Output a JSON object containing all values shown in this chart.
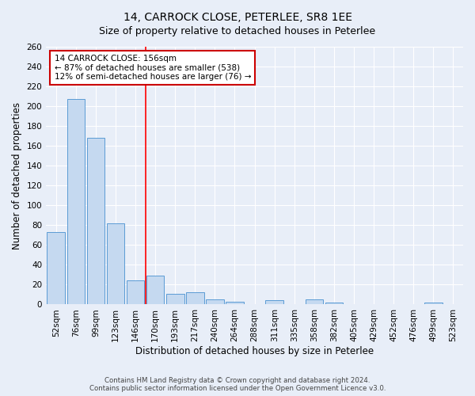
{
  "title": "14, CARROCK CLOSE, PETERLEE, SR8 1EE",
  "subtitle": "Size of property relative to detached houses in Peterlee",
  "xlabel": "Distribution of detached houses by size in Peterlee",
  "ylabel": "Number of detached properties",
  "categories": [
    "52sqm",
    "76sqm",
    "99sqm",
    "123sqm",
    "146sqm",
    "170sqm",
    "193sqm",
    "217sqm",
    "240sqm",
    "264sqm",
    "288sqm",
    "311sqm",
    "335sqm",
    "358sqm",
    "382sqm",
    "405sqm",
    "429sqm",
    "452sqm",
    "476sqm",
    "499sqm",
    "523sqm"
  ],
  "values": [
    73,
    207,
    168,
    82,
    24,
    29,
    11,
    12,
    5,
    3,
    0,
    4,
    0,
    5,
    2,
    0,
    0,
    0,
    0,
    2,
    0
  ],
  "bar_color": "#c5d9f0",
  "bar_edge_color": "#5b9bd5",
  "background_color": "#e8eef8",
  "grid_color": "#ffffff",
  "red_line_x": 4.5,
  "annotation_text": "14 CARROCK CLOSE: 156sqm\n← 87% of detached houses are smaller (538)\n12% of semi-detached houses are larger (76) →",
  "annotation_box_color": "#ffffff",
  "annotation_box_edge_color": "#cc0000",
  "ylim": [
    0,
    260
  ],
  "yticks": [
    0,
    20,
    40,
    60,
    80,
    100,
    120,
    140,
    160,
    180,
    200,
    220,
    240,
    260
  ],
  "footer_text": "Contains HM Land Registry data © Crown copyright and database right 2024.\nContains public sector information licensed under the Open Government Licence v3.0.",
  "title_fontsize": 10,
  "subtitle_fontsize": 9,
  "xlabel_fontsize": 8.5,
  "ylabel_fontsize": 8.5,
  "tick_fontsize": 7.5,
  "annotation_fontsize": 7.5,
  "footer_fontsize": 6.2
}
